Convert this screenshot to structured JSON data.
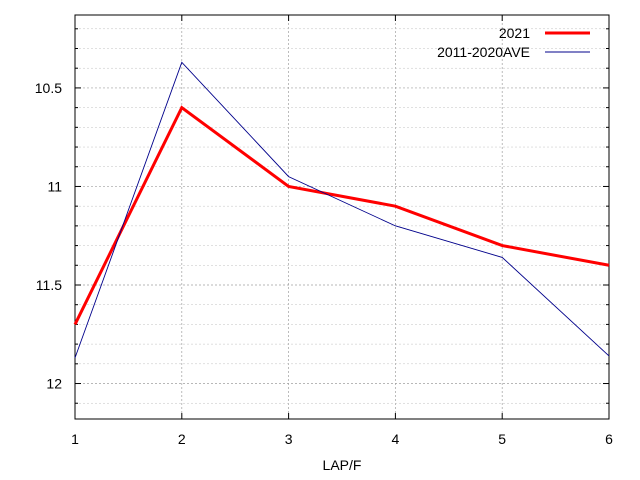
{
  "chart_data": {
    "type": "line",
    "title": "",
    "xlabel": "LAP/F",
    "ylabel": "",
    "x": [
      1,
      2,
      3,
      4,
      5,
      6
    ],
    "x_ticks": [
      "1",
      "2",
      "3",
      "4",
      "5",
      "6"
    ],
    "y_ticks": [
      {
        "value": 10.5,
        "label": "10.5"
      },
      {
        "value": 11,
        "label": "11"
      },
      {
        "value": 11.5,
        "label": "11.5"
      },
      {
        "value": 12,
        "label": "12"
      }
    ],
    "xlim": [
      1,
      6
    ],
    "ylim": [
      12.18,
      10.13
    ],
    "y_inverted": true,
    "grid": true,
    "legend_position": "top-right",
    "series": [
      {
        "name": "2021",
        "values": [
          11.7,
          10.6,
          11.0,
          11.1,
          11.3,
          11.4
        ],
        "color": "#ff0000"
      },
      {
        "name": "2011-2020AVE",
        "values": [
          11.87,
          10.37,
          10.95,
          11.2,
          11.36,
          11.86
        ],
        "color": "#00008b"
      }
    ]
  }
}
